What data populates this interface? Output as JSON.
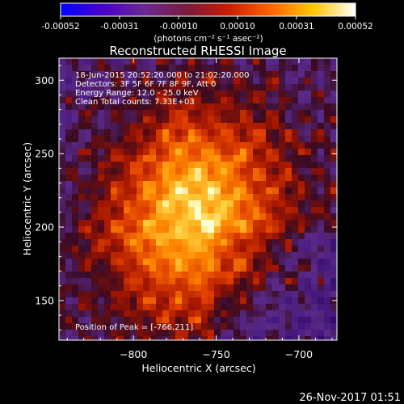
{
  "colorbar": {
    "tick_labels": [
      "-0.00052",
      "-0.00031",
      "-0.00010",
      "0.00010",
      "0.00031",
      "0.00052"
    ],
    "units_label": "(photons cm⁻² s⁻¹ asec⁻²)",
    "colors": [
      "#0000ff",
      "#4a00c8",
      "#6a2a90",
      "#7a1a3a",
      "#c81e00",
      "#ff6400",
      "#ffc800",
      "#ffffff"
    ]
  },
  "chart_data": {
    "type": "heatmap",
    "title": "Reconstructed RHESSI Image",
    "xlabel": "Heliocentric X (arcsec)",
    "ylabel": "Heliocentric Y (arcsec)",
    "xlim": [
      -845,
      -677
    ],
    "ylim": [
      123,
      315
    ],
    "x_ticks": [
      -800,
      -750,
      -700
    ],
    "x_tick_labels": [
      "−800",
      "−750",
      "−700"
    ],
    "y_ticks": [
      150,
      200,
      250,
      300
    ],
    "y_tick_labels": [
      "150",
      "200",
      "250",
      "300"
    ],
    "peak_position": [
      -766,
      211
    ],
    "annotations": [
      "18-Jun-2015 20:52:20.000 to 21:02:20.000",
      "Detectors: 3F 5F 6F 7F 8F 9F, Att 0",
      "Energy Range: 12.0 - 25.0 keV",
      "Clean    Total counts: 7.33E+03",
      "Position of Peak = [-766,211]"
    ]
  },
  "footer": {
    "timestamp": "26-Nov-2017 01:51"
  }
}
